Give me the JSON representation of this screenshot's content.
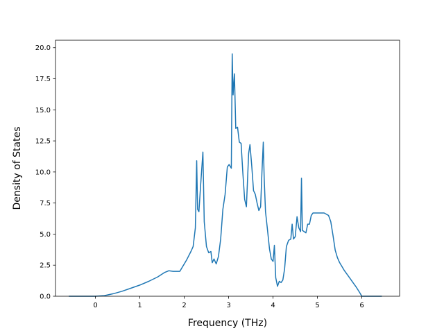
{
  "chart_data": {
    "type": "line",
    "xlabel": "Frequency (THz)",
    "ylabel": "Density of States",
    "xlim": [
      -0.9,
      6.85
    ],
    "ylim": [
      0,
      20.6
    ],
    "xticks": [
      0,
      1,
      2,
      3,
      4,
      5,
      6
    ],
    "yticks": [
      0.0,
      2.5,
      5.0,
      7.5,
      10.0,
      12.5,
      15.0,
      17.5,
      20.0
    ],
    "xtick_labels": [
      "0",
      "1",
      "2",
      "3",
      "4",
      "5",
      "6"
    ],
    "ytick_labels": [
      "0.0",
      "2.5",
      "5.0",
      "7.5",
      "10.0",
      "12.5",
      "15.0",
      "17.5",
      "20.0"
    ],
    "grid": false,
    "line_color": "#1f77b4",
    "series": [
      {
        "x": [
          -0.6,
          0.0,
          0.2,
          0.4,
          0.6,
          0.8,
          1.0,
          1.2,
          1.4,
          1.55,
          1.65,
          1.75,
          1.9,
          1.95,
          2.05,
          2.15,
          2.2,
          2.25,
          2.28,
          2.3,
          2.33,
          2.37,
          2.42,
          2.45,
          2.5,
          2.55,
          2.6,
          2.63,
          2.67,
          2.72,
          2.77,
          2.82,
          2.87,
          2.92,
          2.97,
          3.01,
          3.06,
          3.08,
          3.1,
          3.13,
          3.16,
          3.2,
          3.24,
          3.28,
          3.32,
          3.36,
          3.4,
          3.45,
          3.48,
          3.52,
          3.56,
          3.6,
          3.64,
          3.68,
          3.72,
          3.75,
          3.78,
          3.8,
          3.83,
          3.87,
          3.92,
          3.96,
          4.0,
          4.03,
          4.06,
          4.1,
          4.14,
          4.18,
          4.22,
          4.26,
          4.3,
          4.35,
          4.4,
          4.43,
          4.46,
          4.5,
          4.54,
          4.58,
          4.62,
          4.64,
          4.66,
          4.7,
          4.74,
          4.78,
          4.82,
          4.86,
          4.9,
          4.94,
          5.0,
          5.05,
          5.1,
          5.15,
          5.2,
          5.25,
          5.3,
          5.35,
          5.4,
          5.45,
          5.5,
          5.6,
          5.7,
          5.8,
          5.88,
          5.95,
          6.0,
          6.1,
          6.45
        ],
        "y": [
          0.0,
          0.0,
          0.05,
          0.2,
          0.4,
          0.65,
          0.9,
          1.2,
          1.55,
          1.9,
          2.05,
          2.0,
          2.0,
          2.3,
          2.9,
          3.6,
          4.0,
          5.5,
          10.9,
          7.0,
          6.8,
          9.0,
          11.6,
          6.0,
          4.0,
          3.5,
          3.6,
          2.7,
          3.0,
          2.6,
          3.2,
          4.6,
          7.0,
          8.2,
          10.4,
          10.6,
          10.3,
          19.5,
          16.2,
          17.9,
          13.5,
          13.6,
          12.4,
          12.3,
          9.9,
          7.8,
          7.2,
          11.5,
          12.2,
          10.5,
          8.5,
          8.2,
          7.5,
          6.9,
          7.2,
          10.0,
          12.4,
          9.5,
          6.8,
          5.5,
          3.8,
          3.0,
          2.8,
          4.1,
          1.5,
          0.8,
          1.2,
          1.1,
          1.3,
          2.2,
          4.0,
          4.5,
          4.6,
          5.8,
          4.6,
          4.8,
          6.4,
          5.5,
          5.2,
          9.5,
          5.3,
          5.2,
          5.1,
          5.8,
          5.8,
          6.5,
          6.7,
          6.7,
          6.7,
          6.7,
          6.7,
          6.7,
          6.6,
          6.5,
          6.0,
          4.9,
          3.7,
          3.1,
          2.7,
          2.1,
          1.6,
          1.1,
          0.7,
          0.3,
          0.0,
          0.0,
          0.0
        ]
      }
    ]
  }
}
